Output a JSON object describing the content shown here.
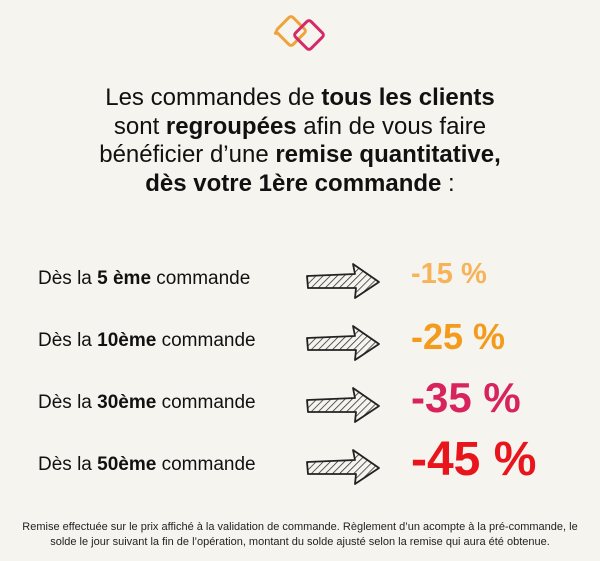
{
  "colors": {
    "background": "#f5f4ef",
    "logo_orange": "#f0a33c",
    "logo_magenta": "#d32a6a"
  },
  "heading": {
    "l1a": "Les commandes de ",
    "l1b": "tous les clients",
    "l2a": "sont ",
    "l2b": "regroupées",
    "l2c": " afin de vous faire",
    "l3a": "bénéficier d’une ",
    "l3b": "remise quantitative,",
    "l4a": "dès votre 1ère commande",
    "l4b": " :"
  },
  "tiers": [
    {
      "prefix": "Dès la ",
      "bold": "5 ème",
      "suffix": " commande",
      "discount": "-15 %",
      "color": "#f7b357"
    },
    {
      "prefix": "Dès la ",
      "bold": "10ème",
      "suffix": " commande",
      "discount": "-25 %",
      "color": "#f29b1d"
    },
    {
      "prefix": "Dès la ",
      "bold": "30ème",
      "suffix": " commande",
      "discount": "-35 %",
      "color": "#d7245e"
    },
    {
      "prefix": "Dès la ",
      "bold": "50ème",
      "suffix": " commande",
      "discount": "-45 %",
      "color": "#e8161c"
    }
  ],
  "icons": {
    "logo": "interlocked-squares-logo",
    "arrow": "hand-drawn-arrow-icon"
  },
  "footer": {
    "line1": "Remise effectuée sur le prix affiché à la validation de commande. Règlement d’un acompte à la pré-commande, le",
    "line2": "solde le jour suivant la fin de l’opération, montant du solde ajusté selon la remise qui aura été obtenue."
  }
}
